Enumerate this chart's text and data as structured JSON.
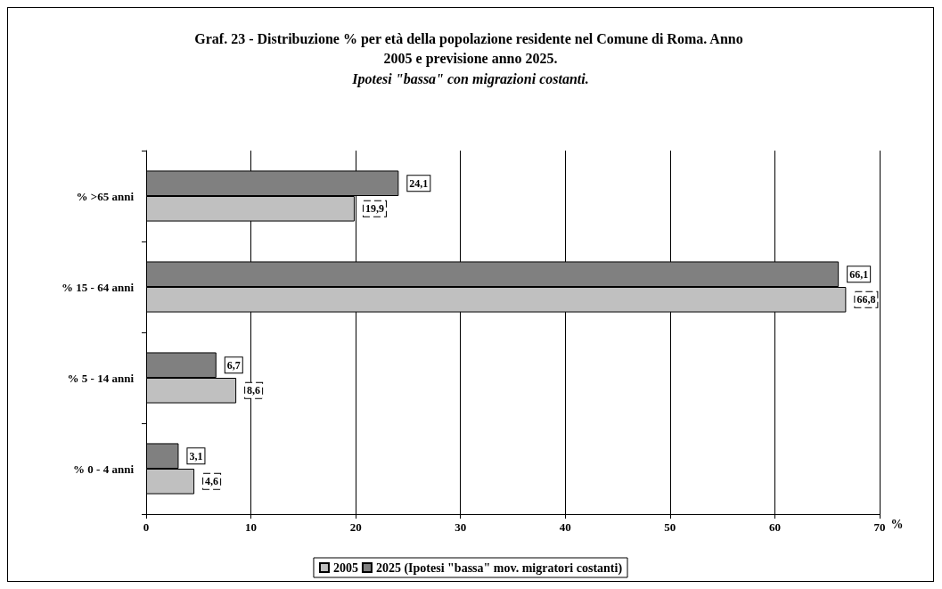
{
  "chart_data": {
    "type": "bar",
    "orientation": "horizontal",
    "title": "Graf. 23 - Distribuzione % per età della popolazione residente nel Comune di Roma. Anno 2005 e previsione anno 2025.",
    "subtitle": "Ipotesi \"bassa\" con migrazioni costanti.",
    "xlabel": "%",
    "categories": [
      "% >65 anni",
      "% 15 - 64 anni",
      "% 5 - 14 anni",
      "% 0 - 4 anni"
    ],
    "series": [
      {
        "name": "2005",
        "color": "#c0c0c0",
        "values": [
          19.9,
          66.8,
          8.6,
          4.6
        ],
        "value_labels": [
          "19,9",
          "66,8",
          "8,6",
          "4,6"
        ]
      },
      {
        "name": "2025 (Ipotesi \"bassa\" mov. migratori costanti)",
        "color": "#808080",
        "values": [
          24.1,
          66.1,
          6.7,
          3.1
        ],
        "value_labels": [
          "24,1",
          "66,1",
          "6,7",
          "3,1"
        ]
      }
    ],
    "xlim": [
      0,
      70
    ],
    "xticks": [
      0,
      10,
      20,
      30,
      40,
      50,
      60,
      70
    ],
    "grid": "x",
    "legend": "bottom"
  }
}
